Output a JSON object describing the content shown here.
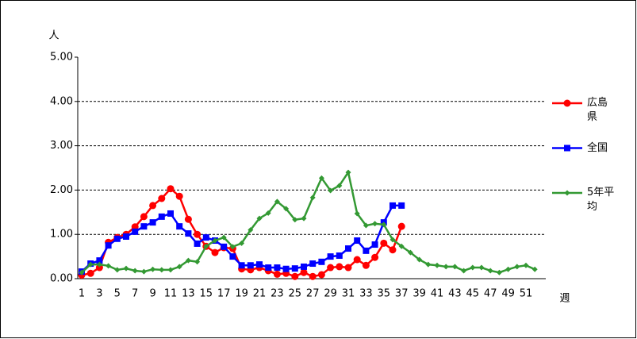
{
  "chart_data": {
    "type": "line",
    "y_label": "人",
    "x_label": "週",
    "categories": [
      1,
      null,
      3,
      null,
      5,
      null,
      7,
      null,
      9,
      null,
      11,
      null,
      13,
      null,
      15,
      null,
      17,
      null,
      19,
      null,
      21,
      null,
      23,
      null,
      25,
      null,
      27,
      null,
      29,
      null,
      31,
      null,
      33,
      null,
      35,
      null,
      37,
      null,
      39,
      null,
      41,
      null,
      43,
      null,
      45,
      null,
      47,
      null,
      49,
      null,
      51,
      null
    ],
    "ylim": [
      0,
      5
    ],
    "yticks": [
      {
        "value": 0,
        "label": "0.00"
      },
      {
        "value": 1,
        "label": "1.00"
      },
      {
        "value": 2,
        "label": "2.00"
      },
      {
        "value": 3,
        "label": "3.00"
      },
      {
        "value": 4,
        "label": "4.00"
      },
      {
        "value": 5,
        "label": "5.00"
      }
    ],
    "grid": true,
    "legend": "right",
    "series": [
      {
        "name": "広島県",
        "color": "#ff0000",
        "marker": "circle",
        "values": [
          0.08,
          0.12,
          0.25,
          0.82,
          0.93,
          1.0,
          1.17,
          1.4,
          1.65,
          1.81,
          2.03,
          1.86,
          1.34,
          1.0,
          0.73,
          0.59,
          0.7,
          0.68,
          0.22,
          0.2,
          0.25,
          0.18,
          0.1,
          0.12,
          0.05,
          0.14,
          0.05,
          0.09,
          0.25,
          0.27,
          0.25,
          0.43,
          0.3,
          0.48,
          0.8,
          0.65,
          1.18,
          null,
          null,
          null,
          null,
          null,
          null,
          null,
          null,
          null,
          null,
          null,
          null,
          null,
          null,
          null
        ]
      },
      {
        "name": "全国",
        "color": "#0000ff",
        "marker": "square",
        "values": [
          0.16,
          0.34,
          0.41,
          0.75,
          0.9,
          0.95,
          1.06,
          1.18,
          1.27,
          1.4,
          1.47,
          1.18,
          1.02,
          0.79,
          0.93,
          0.86,
          0.72,
          0.5,
          0.3,
          0.3,
          0.32,
          0.25,
          0.25,
          0.22,
          0.23,
          0.27,
          0.34,
          0.38,
          0.5,
          0.52,
          0.68,
          0.86,
          0.63,
          0.77,
          1.27,
          1.65,
          1.65,
          null,
          null,
          null,
          null,
          null,
          null,
          null,
          null,
          null,
          null,
          null,
          null,
          null,
          null,
          null
        ]
      },
      {
        "name": "5年平均",
        "color": "#339933",
        "marker": "diamond",
        "values": [
          0.14,
          0.32,
          0.32,
          0.29,
          0.2,
          0.23,
          0.18,
          0.16,
          0.21,
          0.2,
          0.2,
          0.27,
          0.41,
          0.38,
          0.73,
          0.86,
          0.93,
          0.72,
          0.8,
          1.1,
          1.36,
          1.48,
          1.74,
          1.58,
          1.33,
          1.36,
          1.83,
          2.27,
          1.99,
          2.1,
          2.4,
          1.47,
          1.2,
          1.24,
          1.22,
          0.88,
          0.73,
          0.59,
          0.43,
          0.32,
          0.3,
          0.27,
          0.27,
          0.18,
          0.25,
          0.25,
          0.18,
          0.14,
          0.21,
          0.27,
          0.3,
          0.21
        ]
      }
    ]
  }
}
